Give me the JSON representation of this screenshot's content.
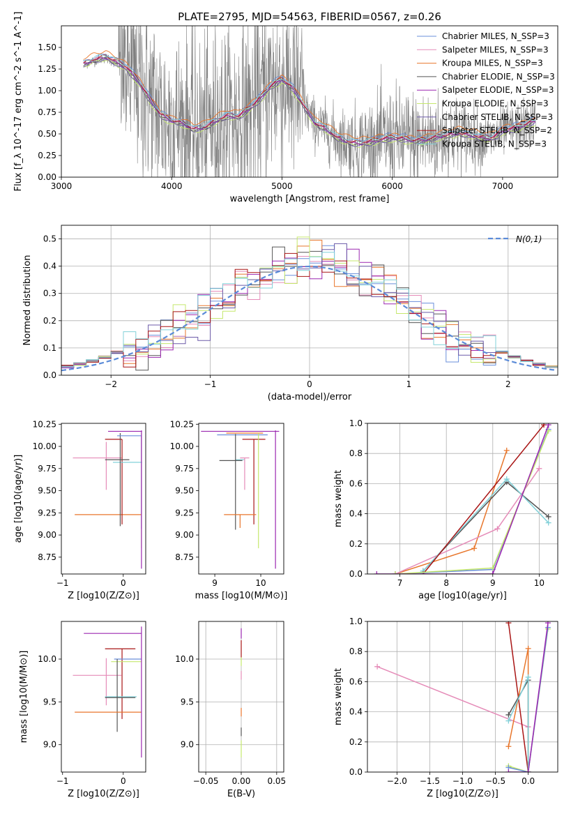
{
  "figure_title": "PLATE=2795, MJD=54563, FIBERID=0567, z=0.26",
  "colors": {
    "Chabrier MILES": "#6a8fdb",
    "Salpeter MILES": "#e58bb8",
    "Kroupa MILES": "#e8762b",
    "Chabrier ELODIE": "#555555",
    "Salpeter ELODIE": "#9b27b0",
    "Kroupa ELODIE": "#c5e86c",
    "Chabrier STELIB": "#6b5aa8",
    "Salpeter STELIB": "#a81414",
    "Kroupa STELIB": "#80d0d8",
    "data": "#808080",
    "normal": "#5b8bd8"
  },
  "chart_data": [
    {
      "id": "spectrum",
      "type": "line",
      "title": "PLATE=2795, MJD=54563, FIBERID=0567, z=0.26",
      "xlabel": "wavelength [Angstrom, rest frame]",
      "ylabel": "Flux [f_λ 10^-17 erg cm^-2 s^-1 A^-1]",
      "xlim": [
        3000,
        7500
      ],
      "ylim": [
        0,
        1.75
      ],
      "xticks": [
        3000,
        4000,
        5000,
        6000,
        7000
      ],
      "yticks": [
        0.0,
        0.25,
        0.5,
        0.75,
        1.0,
        1.25,
        1.5
      ],
      "ytick_labels": [
        "0.00",
        "0.25",
        "0.50",
        "0.75",
        "1.00",
        "1.25",
        "1.50"
      ],
      "grid": false,
      "legend_position": "top-right",
      "legend": [
        "Chabrier MILES, N_SSP=3",
        "Salpeter MILES, N_SSP=3",
        "Kroupa MILES, N_SSP=3",
        "Chabrier ELODIE, N_SSP=3",
        "Salpeter ELODIE, N_SSP=3",
        "Kroupa ELODIE, N_SSP=3",
        "Chabrier STELIB, N_SSP=3",
        "Salpeter STELIB, N_SSP=2",
        "Kroupa STELIB, N_SSP=3"
      ],
      "continuum": {
        "x": [
          3200,
          3300,
          3400,
          3500,
          3600,
          3700,
          3800,
          3900,
          4000,
          4100,
          4200,
          4300,
          4400,
          4500,
          4600,
          4700,
          4800,
          4900,
          5000,
          5100,
          5200,
          5300,
          5400,
          5500,
          5600,
          5700,
          5800,
          5900,
          6000,
          6100,
          6200,
          6300,
          6400,
          6500,
          6600,
          6700,
          6800,
          6900,
          7000,
          7100,
          7200,
          7300
        ],
        "y": [
          1.3,
          1.35,
          1.38,
          1.32,
          1.25,
          1.1,
          0.9,
          0.72,
          0.65,
          0.62,
          0.55,
          0.57,
          0.64,
          0.7,
          0.69,
          0.78,
          0.9,
          1.05,
          1.13,
          1.02,
          0.82,
          0.62,
          0.55,
          0.45,
          0.4,
          0.38,
          0.4,
          0.43,
          0.45,
          0.44,
          0.42,
          0.43,
          0.46,
          0.48,
          0.5,
          0.48,
          0.45,
          0.44,
          0.53,
          0.56,
          0.6,
          0.65
        ]
      }
    },
    {
      "id": "residuals",
      "type": "histogram",
      "xlabel": "(data-model)/error",
      "ylabel": "Normed distribution",
      "xlim": [
        -2.5,
        2.5
      ],
      "ylim": [
        0,
        0.55
      ],
      "xticks": [
        -2,
        -1,
        0,
        1,
        2
      ],
      "yticks": [
        0.0,
        0.1,
        0.2,
        0.3,
        0.4,
        0.5
      ],
      "ytick_labels": [
        "0.0",
        "0.1",
        "0.2",
        "0.3",
        "0.4",
        "0.5"
      ],
      "grid": true,
      "legend_position": "top-right",
      "legend": [
        "N(0,1)"
      ],
      "reference_curve": {
        "name": "N(0,1)",
        "mean": 0,
        "sigma": 1
      }
    },
    {
      "id": "age-vs-Z",
      "type": "errorbar",
      "xlabel": "Z [log10(Z/Z⊙)]",
      "ylabel": "age [log10(age/yr)]",
      "xlim": [
        -1.02,
        0.37
      ],
      "ylim": [
        8.56,
        10.26
      ],
      "xticks": [
        -1,
        0
      ],
      "yticks": [
        8.75,
        9.0,
        9.25,
        9.5,
        9.75,
        10.0,
        10.25
      ],
      "ytick_labels": [
        "8.75",
        "9.00",
        "9.25",
        "9.50",
        "9.75",
        "10.00",
        "10.25"
      ],
      "grid": false,
      "points": [
        {
          "model": "Salpeter MILES",
          "x": -0.28,
          "xerr": [
            0.55,
            0.25
          ],
          "y": 9.87,
          "yerr": [
            0.36,
            0.18
          ]
        },
        {
          "model": "Kroupa MILES",
          "x": -0.1,
          "xerr": [
            0.7,
            0.4
          ],
          "y": 9.23,
          "yerr": [
            0.0,
            0.0
          ]
        },
        {
          "model": "Salpeter STELIB",
          "x": -0.02,
          "xerr": [
            0.28,
            0.0
          ],
          "y": 10.08,
          "yerr": [
            0.96,
            0.0
          ]
        },
        {
          "model": "Salpeter ELODIE",
          "x": 0.05,
          "xerr": [
            0.3,
            0.26
          ],
          "y": 10.17,
          "yerr": [
            0.0,
            0.0
          ]
        },
        {
          "model": "Kroupa STELIB",
          "x": 0.05,
          "xerr": [
            0.22,
            0.26
          ],
          "y": 9.82,
          "yerr": [
            0.0,
            0.0
          ]
        },
        {
          "model": "Chabrier ELODIE",
          "x": -0.05,
          "xerr": [
            0.25,
            0.15
          ],
          "y": 9.85,
          "yerr": [
            0.75,
            0.3
          ]
        },
        {
          "model": "Kroupa ELODIE",
          "x": 0.3,
          "xerr": [
            0.0,
            0.0
          ],
          "y": 10.15,
          "yerr": [
            1.3,
            0.0
          ]
        },
        {
          "model": "Chabrier MILES",
          "x": 0.3,
          "xerr": [
            0.4,
            0.0
          ],
          "y": 10.12,
          "yerr": [
            1.05,
            0.0
          ]
        },
        {
          "model": "Salpeter ELODIE",
          "x": 0.3,
          "xerr": [
            0.0,
            0.0
          ],
          "y": 9.6,
          "yerr": [
            0.98,
            0.58
          ]
        }
      ]
    },
    {
      "id": "age-vs-mass",
      "type": "errorbar",
      "xlabel": "mass [log10(M/M⊙)]",
      "ylabel": "",
      "xlim": [
        8.65,
        10.5
      ],
      "ylim": [
        8.56,
        10.26
      ],
      "xticks": [
        9,
        10
      ],
      "yticks": [
        8.75,
        9.0,
        9.25,
        9.5,
        9.75,
        10.0,
        10.25
      ],
      "ytick_labels": [
        "8.75",
        "9.00",
        "9.25",
        "9.50",
        "9.75",
        "10.00",
        "10.25"
      ],
      "grid": false,
      "points": [
        {
          "model": "Salpeter ELODIE",
          "x": 9.55,
          "xerr": [
            0.85,
            0.85
          ],
          "y": 10.17,
          "yerr": [
            0.0,
            0.0
          ]
        },
        {
          "model": "Kroupa MILES",
          "x": 9.65,
          "xerr": [
            0.4,
            0.4
          ],
          "y": 10.15,
          "yerr": [
            0.0,
            0.0
          ]
        },
        {
          "model": "Chabrier MILES",
          "x": 9.6,
          "xerr": [
            0.55,
            0.55
          ],
          "y": 10.13,
          "yerr": [
            0.0,
            0.0
          ]
        },
        {
          "model": "Salpeter STELIB",
          "x": 9.85,
          "xerr": [
            0.25,
            0.25
          ],
          "y": 10.08,
          "yerr": [
            0.96,
            0.0
          ]
        },
        {
          "model": "Kroupa STELIB",
          "x": 9.55,
          "xerr": [
            0.1,
            0.1
          ],
          "y": 9.85,
          "yerr": [
            0.0,
            0.0
          ]
        },
        {
          "model": "Chabrier ELODIE",
          "x": 9.45,
          "xerr": [
            0.35,
            0.15
          ],
          "y": 9.84,
          "yerr": [
            0.78,
            0.3
          ]
        },
        {
          "model": "Salpeter MILES",
          "x": 9.65,
          "xerr": [
            0.1,
            0.1
          ],
          "y": 9.87,
          "yerr": [
            0.36,
            0.0
          ]
        },
        {
          "model": "Kroupa ELODIE",
          "x": 9.95,
          "xerr": [
            0.0,
            0.0
          ],
          "y": 10.15,
          "yerr": [
            1.3,
            0.0
          ]
        },
        {
          "model": "Kroupa MILES",
          "x": 9.55,
          "xerr": [
            0.35,
            0.35
          ],
          "y": 9.23,
          "yerr": [
            0.15,
            0.0
          ]
        },
        {
          "model": "Salpeter ELODIE",
          "x": 10.32,
          "xerr": [
            0.0,
            0.0
          ],
          "y": 9.6,
          "yerr": [
            0.98,
            0.58
          ]
        }
      ]
    },
    {
      "id": "weight-vs-age",
      "type": "line",
      "xlabel": "age [log10(age/yr)]",
      "ylabel": "mass weight",
      "xlim": [
        6.3,
        10.4
      ],
      "ylim": [
        0,
        1.0
      ],
      "xticks": [
        7,
        8,
        9,
        10
      ],
      "yticks": [
        0.0,
        0.2,
        0.4,
        0.6,
        0.8,
        1.0
      ],
      "ytick_labels": [
        "0.0",
        "0.2",
        "0.4",
        "0.6",
        "0.8",
        "1.0"
      ],
      "grid": true,
      "series": [
        {
          "model": "Kroupa MILES",
          "x": [
            6.9,
            8.6,
            9.3
          ],
          "y": [
            0.0,
            0.17,
            0.82
          ]
        },
        {
          "model": "Salpeter MILES",
          "x": [
            6.9,
            9.1,
            10.0
          ],
          "y": [
            0.0,
            0.3,
            0.7
          ]
        },
        {
          "model": "Chabrier ELODIE",
          "x": [
            7.5,
            9.3,
            10.2
          ],
          "y": [
            0.02,
            0.61,
            0.38
          ]
        },
        {
          "model": "Kroupa STELIB",
          "x": [
            7.5,
            9.3,
            10.2
          ],
          "y": [
            0.02,
            0.63,
            0.34
          ]
        },
        {
          "model": "Salpeter STELIB",
          "x": [
            7.5,
            10.1
          ],
          "y": [
            0.0,
            0.99
          ]
        },
        {
          "model": "Chabrier MILES",
          "x": [
            6.9,
            9.0,
            10.2
          ],
          "y": [
            0.0,
            0.03,
            0.96
          ]
        },
        {
          "model": "Kroupa ELODIE",
          "x": [
            6.9,
            9.0,
            10.2
          ],
          "y": [
            0.0,
            0.04,
            0.95
          ]
        },
        {
          "model": "Salpeter ELODIE",
          "x": [
            6.5,
            9.0,
            10.2
          ],
          "y": [
            0.0,
            0.0,
            0.99
          ]
        }
      ]
    },
    {
      "id": "mass-vs-Z",
      "type": "errorbar",
      "xlabel": "Z [log10(Z/Z⊙)]",
      "ylabel": "mass [log10(M/M⊙)]",
      "xlim": [
        -1.02,
        0.37
      ],
      "ylim": [
        8.68,
        10.44
      ],
      "xticks": [
        -1,
        0
      ],
      "yticks": [
        9.0,
        9.5,
        10.0
      ],
      "ytick_labels": [
        "9.0",
        "9.5",
        "10.0"
      ],
      "grid": false,
      "points": [
        {
          "model": "Salpeter ELODIE",
          "x": -0.1,
          "xerr": [
            0.55,
            0.4
          ],
          "y": 10.3,
          "yerr": [
            0.0,
            0.0
          ]
        },
        {
          "model": "Salpeter STELIB",
          "x": -0.02,
          "xerr": [
            0.28,
            0.22
          ],
          "y": 10.12,
          "yerr": [
            0.82,
            0.0
          ]
        },
        {
          "model": "Chabrier MILES",
          "x": 0.1,
          "xerr": [
            0.25,
            0.2
          ],
          "y": 10.0,
          "yerr": [
            0.0,
            0.0
          ]
        },
        {
          "model": "Kroupa ELODIE",
          "x": 0.1,
          "xerr": [
            0.3,
            0.2
          ],
          "y": 9.97,
          "yerr": [
            0.0,
            0.0
          ]
        },
        {
          "model": "Salpeter MILES",
          "x": -0.28,
          "xerr": [
            0.55,
            0.25
          ],
          "y": 9.81,
          "yerr": [
            0.35,
            0.2
          ]
        },
        {
          "model": "Kroupa STELIB",
          "x": -0.1,
          "xerr": [
            0.2,
            0.32
          ],
          "y": 9.56,
          "yerr": [
            0.0,
            0.0
          ]
        },
        {
          "model": "Chabrier ELODIE",
          "x": -0.1,
          "xerr": [
            0.2,
            0.3
          ],
          "y": 9.55,
          "yerr": [
            0.4,
            0.45
          ]
        },
        {
          "model": "Kroupa MILES",
          "x": -0.1,
          "xerr": [
            0.7,
            0.4
          ],
          "y": 9.38,
          "yerr": [
            0.0,
            0.0
          ]
        },
        {
          "model": "Salpeter ELODIE",
          "x": 0.3,
          "xerr": [
            0.0,
            0.0
          ],
          "y": 9.6,
          "yerr": [
            0.75,
            0.78
          ]
        }
      ]
    },
    {
      "id": "mass-vs-EBV",
      "type": "errorbar",
      "xlabel": "E(B-V)",
      "ylabel": "",
      "xlim": [
        -0.06,
        0.06
      ],
      "ylim": [
        8.68,
        10.44
      ],
      "xticks": [
        -0.05,
        0.0,
        0.05
      ],
      "xtick_labels": [
        "−0.05",
        "0.00",
        "0.05"
      ],
      "yticks": [
        9.0,
        9.5,
        10.0
      ],
      "ytick_labels": [
        "9.0",
        "9.5",
        "10.0"
      ],
      "grid": true,
      "points": [
        {
          "model": "Salpeter ELODIE",
          "x": 0.0,
          "xerr": [
            0,
            0
          ],
          "y": 10.3,
          "yerr": [
            0.06,
            0.06
          ]
        },
        {
          "model": "Salpeter STELIB",
          "x": 0.0,
          "xerr": [
            0,
            0
          ],
          "y": 10.12,
          "yerr": [
            0.1,
            0.1
          ]
        },
        {
          "model": "Kroupa ELODIE",
          "x": 0.0,
          "xerr": [
            0,
            0
          ],
          "y": 9.97,
          "yerr": [
            0.05,
            0.05
          ]
        },
        {
          "model": "Salpeter MILES",
          "x": 0.0,
          "xerr": [
            0,
            0
          ],
          "y": 9.81,
          "yerr": [
            0.05,
            0.05
          ]
        },
        {
          "model": "Chabrier ELODIE",
          "x": 0.0,
          "xerr": [
            0,
            0
          ],
          "y": 9.15,
          "yerr": [
            0.05,
            0.05
          ]
        },
        {
          "model": "Kroupa MILES",
          "x": 0.0,
          "xerr": [
            0,
            0
          ],
          "y": 9.38,
          "yerr": [
            0.05,
            0.05
          ]
        },
        {
          "model": "Kroupa ELODIE",
          "x": 0.0,
          "xerr": [
            0,
            0
          ],
          "y": 8.95,
          "yerr": [
            0.1,
            0.1
          ]
        }
      ]
    },
    {
      "id": "weight-vs-Z",
      "type": "line",
      "xlabel": "Z [log10(Z/Z⊙)]",
      "ylabel": "mass weight",
      "xlim": [
        -2.45,
        0.45
      ],
      "ylim": [
        0,
        1.0
      ],
      "xticks": [
        -2.0,
        -1.5,
        -1.0,
        -0.5,
        0.0
      ],
      "xtick_labels": [
        "−2.0",
        "−1.5",
        "−1.0",
        "−0.5",
        "0.0"
      ],
      "yticks": [
        0.0,
        0.2,
        0.4,
        0.6,
        0.8,
        1.0
      ],
      "ytick_labels": [
        "0.0",
        "0.2",
        "0.4",
        "0.6",
        "0.8",
        "1.0"
      ],
      "grid": true,
      "series": [
        {
          "model": "Salpeter MILES",
          "x": [
            -2.3,
            0.0
          ],
          "y": [
            0.7,
            0.3
          ]
        },
        {
          "model": "Salpeter STELIB",
          "x": [
            -0.3,
            0.0
          ],
          "y": [
            0.99,
            0.0
          ]
        },
        {
          "model": "Kroupa MILES",
          "x": [
            -0.3,
            0.0,
            0.0
          ],
          "y": [
            0.17,
            0.82,
            0.0
          ]
        },
        {
          "model": "Chabrier ELODIE",
          "x": [
            -0.3,
            0.0,
            0.0
          ],
          "y": [
            0.38,
            0.61,
            0.0
          ]
        },
        {
          "model": "Kroupa STELIB",
          "x": [
            -0.3,
            0.0,
            0.0
          ],
          "y": [
            0.34,
            0.63,
            0.0
          ]
        },
        {
          "model": "Kroupa ELODIE",
          "x": [
            -0.3,
            0.0,
            0.3
          ],
          "y": [
            0.04,
            0.0,
            0.95
          ]
        },
        {
          "model": "Chabrier MILES",
          "x": [
            -0.3,
            0.0,
            0.3
          ],
          "y": [
            0.03,
            0.0,
            0.96
          ]
        },
        {
          "model": "Salpeter ELODIE",
          "x": [
            -0.3,
            0.0,
            0.3
          ],
          "y": [
            0.0,
            0.0,
            0.99
          ]
        }
      ]
    }
  ]
}
